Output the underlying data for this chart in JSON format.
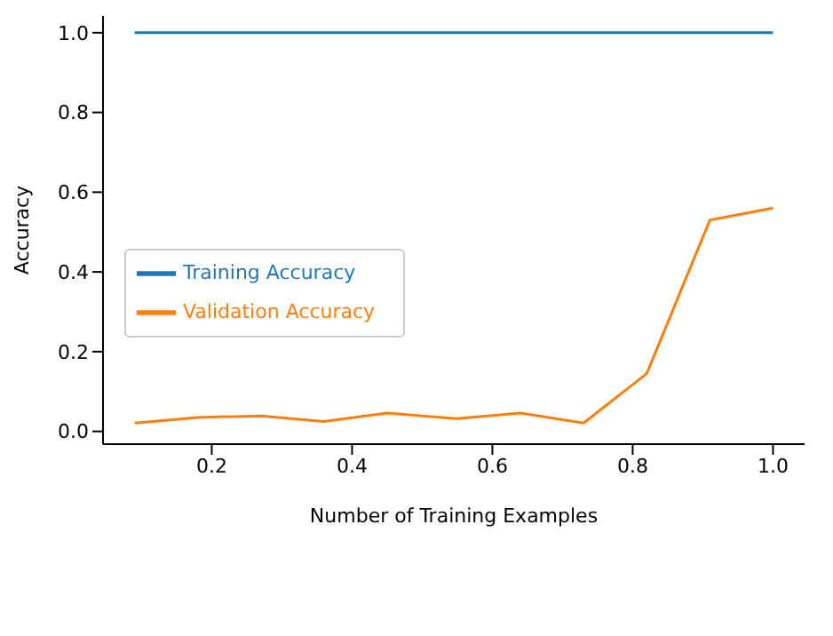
{
  "chart_data": {
    "type": "line",
    "xlabel": "Number of Training Examples",
    "ylabel": "Accuracy",
    "x": [
      0.09,
      0.18,
      0.27,
      0.36,
      0.45,
      0.55,
      0.64,
      0.73,
      0.82,
      0.91,
      1.0
    ],
    "series": [
      {
        "name": "Training Accuracy",
        "color": "#1f77b4",
        "values": [
          1,
          1,
          1,
          1,
          1,
          1,
          1,
          1,
          1,
          1,
          1
        ]
      },
      {
        "name": "Validation Accuracy",
        "color": "#ff7f0e",
        "values": [
          0.021,
          0.035,
          0.039,
          0.025,
          0.046,
          0.032,
          0.046,
          0.021,
          0.145,
          0.53,
          0.56
        ]
      }
    ],
    "xlim": [
      0.045,
      1.045
    ],
    "xticks": [
      0.2,
      0.4,
      0.6,
      0.8,
      {
        "value": 1.0,
        "label": "1.0"
      }
    ],
    "ylim": [
      -0.032,
      1.042
    ],
    "yticks": [
      {
        "value": 0,
        "label": "0.0"
      },
      0.2,
      0.4,
      0.6,
      0.8,
      {
        "value": 1.0,
        "label": "1.0"
      }
    ],
    "grid": false,
    "legend": "center left",
    "marker": "none",
    "line_style": "solid"
  }
}
